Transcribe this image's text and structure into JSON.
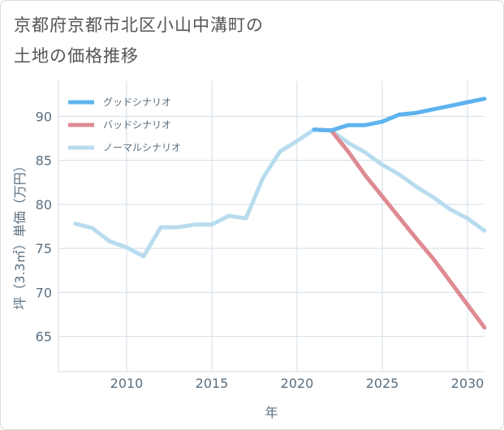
{
  "title_lines": [
    "京都府京都市北区小山中溝町の",
    "土地の価格推移"
  ],
  "chart_data": {
    "type": "line",
    "title": "京都府京都市北区小山中溝町の土地の価格推移",
    "xlabel": "年",
    "ylabel": "坪（3.3㎡）単価（万円）",
    "xlim": [
      2006,
      2031
    ],
    "ylim": [
      61,
      94
    ],
    "x_ticks": [
      2010,
      2015,
      2020,
      2025,
      2030
    ],
    "y_ticks": [
      65,
      70,
      75,
      80,
      85,
      90
    ],
    "grid": true,
    "legend_position": "top-left",
    "series": [
      {
        "name": "グッドシナリオ",
        "color": "#5eb3ee",
        "x": [
          2021,
          2022,
          2023,
          2024,
          2025,
          2026,
          2027,
          2028,
          2029,
          2030,
          2031
        ],
        "values": [
          88.5,
          88.4,
          89.0,
          89.0,
          89.4,
          90.2,
          90.4,
          90.8,
          91.2,
          91.6,
          92.0
        ]
      },
      {
        "name": "バッドシナリオ",
        "color": "#de8a92",
        "x": [
          2021,
          2022,
          2023,
          2024,
          2025,
          2026,
          2027,
          2028,
          2029,
          2030,
          2031
        ],
        "values": [
          88.5,
          88.4,
          86.0,
          83.3,
          80.9,
          78.5,
          76.1,
          73.8,
          71.2,
          68.6,
          66.0
        ]
      },
      {
        "name": "ノーマルシナリオ",
        "color": "#b8dcee",
        "x": [
          2007,
          2008,
          2009,
          2010,
          2011,
          2012,
          2013,
          2014,
          2015,
          2016,
          2017,
          2018,
          2019,
          2020,
          2021,
          2022,
          2023,
          2024,
          2025,
          2026,
          2027,
          2028,
          2029,
          2030,
          2031
        ],
        "values": [
          77.8,
          77.3,
          75.8,
          75.1,
          74.1,
          77.4,
          77.4,
          77.7,
          77.7,
          78.7,
          78.4,
          83.0,
          86.0,
          87.2,
          88.5,
          88.4,
          87.0,
          85.9,
          84.5,
          83.4,
          82.0,
          80.8,
          79.4,
          78.4,
          77.0
        ]
      }
    ]
  }
}
